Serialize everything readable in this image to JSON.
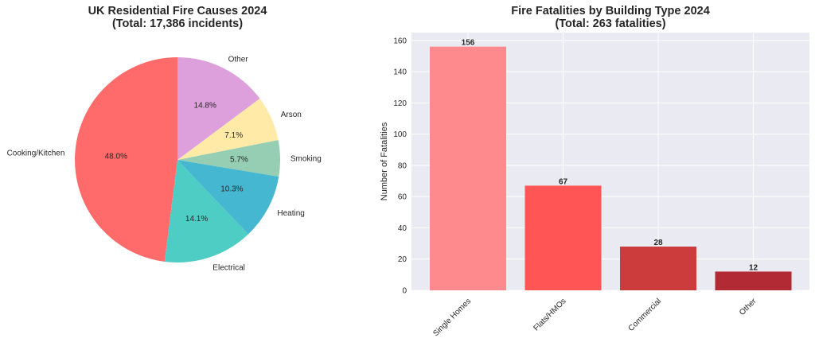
{
  "chart_data": [
    {
      "type": "pie",
      "title_line1": "UK Residential Fire Causes 2024",
      "title_line2": "(Total: 17,386 incidents)",
      "slices": [
        {
          "label": "Cooking/Kitchen",
          "value": 48.0,
          "pct_label": "48.0%",
          "color": "#ff6b6b"
        },
        {
          "label": "Electrical",
          "value": 14.1,
          "pct_label": "14.1%",
          "color": "#4ecdc4"
        },
        {
          "label": "Heating",
          "value": 10.3,
          "pct_label": "10.3%",
          "color": "#45b7d1"
        },
        {
          "label": "Smoking",
          "value": 5.7,
          "pct_label": "5.7%",
          "color": "#96ceb4"
        },
        {
          "label": "Arson",
          "value": 7.1,
          "pct_label": "7.1%",
          "color": "#ffeaa7"
        },
        {
          "label": "Other",
          "value": 14.8,
          "pct_label": "14.8%",
          "color": "#dda0dd"
        }
      ],
      "start_angle_deg": 90,
      "direction": "counterclockwise"
    },
    {
      "type": "bar",
      "title_line1": "Fire Fatalities by Building Type 2024",
      "title_line2": "(Total: 263 fatalities)",
      "categories": [
        "Single Homes",
        "Flats/HMOs",
        "Commercial",
        "Other"
      ],
      "values": [
        156,
        67,
        28,
        12
      ],
      "value_labels": [
        "156",
        "67",
        "28",
        "12"
      ],
      "colors": [
        "#ff8a8e",
        "#ff5555",
        "#cc3c3c",
        "#b22a33"
      ],
      "ylabel": "Number of Fatalities",
      "ylim": [
        0,
        165
      ],
      "yticks": [
        0,
        20,
        40,
        60,
        80,
        100,
        120,
        140,
        160
      ],
      "grid": true,
      "background": "#eaeaf2"
    }
  ]
}
